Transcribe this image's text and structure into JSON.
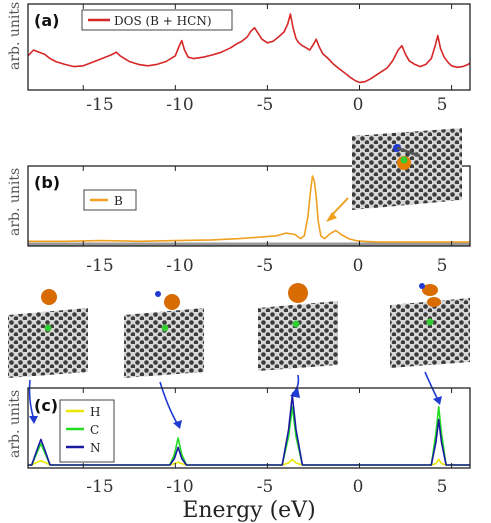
{
  "chart_data": [
    {
      "type": "line",
      "panel_label": "(a)",
      "ylabel": "arb. units",
      "xlim": [
        -18,
        6
      ],
      "x_ticks": [
        "-15",
        "-10",
        "-5",
        "0",
        "5"
      ],
      "legend": "top-left",
      "series": [
        {
          "name": "DOS (B + HCN)",
          "color": "#d62728",
          "x": [
            -18,
            -17.7,
            -17.4,
            -17.1,
            -16.8,
            -16.5,
            -16,
            -15.5,
            -15,
            -14.5,
            -14,
            -13.5,
            -13.2,
            -13,
            -12.5,
            -12,
            -11.5,
            -11,
            -10.5,
            -10,
            -9.8,
            -9.65,
            -9.5,
            -9.3,
            -9,
            -8.5,
            -8,
            -7.5,
            -7,
            -6.7,
            -6.4,
            -6.1,
            -5.9,
            -5.7,
            -5.5,
            -5.3,
            -5,
            -4.7,
            -4.4,
            -4.1,
            -3.9,
            -3.75,
            -3.6,
            -3.45,
            -3.3,
            -3.1,
            -2.9,
            -2.7,
            -2.5,
            -2.35,
            -2.2,
            -2,
            -1.7,
            -1.4,
            -1.1,
            -0.8,
            -0.5,
            -0.2,
            0,
            0.3,
            0.6,
            0.9,
            1.2,
            1.5,
            1.8,
            2.1,
            2.3,
            2.5,
            2.7,
            3,
            3.3,
            3.6,
            3.9,
            4.1,
            4.25,
            4.4,
            4.6,
            4.8,
            5,
            5.3,
            5.6,
            5.9,
            6
          ],
          "y": [
            0.42,
            0.5,
            0.47,
            0.44,
            0.38,
            0.34,
            0.3,
            0.27,
            0.28,
            0.33,
            0.38,
            0.43,
            0.47,
            0.42,
            0.34,
            0.3,
            0.28,
            0.3,
            0.34,
            0.42,
            0.55,
            0.63,
            0.5,
            0.4,
            0.38,
            0.4,
            0.43,
            0.47,
            0.53,
            0.58,
            0.62,
            0.68,
            0.76,
            0.81,
            0.73,
            0.65,
            0.6,
            0.62,
            0.68,
            0.75,
            0.86,
            1.0,
            0.8,
            0.66,
            0.6,
            0.56,
            0.53,
            0.5,
            0.58,
            0.65,
            0.55,
            0.45,
            0.38,
            0.3,
            0.24,
            0.18,
            0.12,
            0.07,
            0.05,
            0.06,
            0.1,
            0.15,
            0.2,
            0.25,
            0.35,
            0.5,
            0.56,
            0.44,
            0.35,
            0.3,
            0.27,
            0.3,
            0.38,
            0.55,
            0.7,
            0.52,
            0.4,
            0.33,
            0.28,
            0.26,
            0.27,
            0.3,
            0.32
          ]
        }
      ]
    },
    {
      "type": "line",
      "panel_label": "(b)",
      "ylabel": "arb. units",
      "xlim": [
        -18,
        6
      ],
      "x_ticks": [
        "-15",
        "-10",
        "-5",
        "0",
        "5"
      ],
      "legend": "top-left",
      "series": [
        {
          "name": "B",
          "color": "#f0a020",
          "x": [
            -18,
            -16,
            -14,
            -12,
            -10,
            -8,
            -6.5,
            -5.5,
            -4.5,
            -4,
            -3.5,
            -3.2,
            -3,
            -2.8,
            -2.65,
            -2.55,
            -2.45,
            -2.35,
            -2.25,
            -2.1,
            -1.9,
            -1.6,
            -1.3,
            -1,
            -0.6,
            -0.2,
            0.2,
            1,
            2,
            4,
            6
          ],
          "y": [
            0.04,
            0.04,
            0.05,
            0.04,
            0.05,
            0.06,
            0.08,
            0.1,
            0.12,
            0.16,
            0.14,
            0.08,
            0.12,
            0.4,
            0.8,
            1.0,
            0.92,
            0.7,
            0.35,
            0.12,
            0.08,
            0.15,
            0.2,
            0.14,
            0.08,
            0.05,
            0.04,
            0.03,
            0.03,
            0.03,
            0.03
          ]
        }
      ]
    },
    {
      "type": "line",
      "panel_label": "(c)",
      "ylabel": "arb. units",
      "xlim": [
        -18,
        6
      ],
      "x_ticks": [
        "-15",
        "-10",
        "-5",
        "0",
        "5"
      ],
      "legend": "top-left",
      "series": [
        {
          "name": "H",
          "color": "#e8e800",
          "x": [
            -18,
            -17.8,
            -17.5,
            -17.3,
            -17.1,
            -16.8,
            -10.3,
            -10.05,
            -9.85,
            -9.65,
            -9.4,
            -4.2,
            -3.85,
            -3.65,
            -3.45,
            -3.1,
            3.9,
            4.15,
            4.3,
            4.45,
            4.7,
            6
          ],
          "y": [
            0.0,
            0.0,
            0.04,
            0.06,
            0.04,
            0.0,
            0.0,
            0.02,
            0.04,
            0.02,
            0.0,
            0.0,
            0.03,
            0.08,
            0.03,
            0.0,
            0.0,
            0.02,
            0.08,
            0.02,
            0.0,
            0.0
          ]
        },
        {
          "name": "C",
          "color": "#22dd22",
          "x": [
            -18,
            -17.8,
            -17.5,
            -17.3,
            -17.1,
            -16.8,
            -10.3,
            -10.05,
            -9.85,
            -9.65,
            -9.4,
            -4.2,
            -3.85,
            -3.65,
            -3.45,
            -3.1,
            3.9,
            4.15,
            4.3,
            4.45,
            4.7,
            6
          ],
          "y": [
            0.0,
            0.0,
            0.18,
            0.3,
            0.18,
            0.0,
            0.0,
            0.15,
            0.38,
            0.15,
            0.0,
            0.0,
            0.4,
            0.82,
            0.4,
            0.0,
            0.0,
            0.45,
            0.82,
            0.45,
            0.0,
            0.0
          ]
        },
        {
          "name": "N",
          "color": "#1a1aa0",
          "x": [
            -18,
            -17.8,
            -17.5,
            -17.3,
            -17.1,
            -16.8,
            -10.3,
            -10.05,
            -9.85,
            -9.65,
            -9.4,
            -4.2,
            -3.85,
            -3.65,
            -3.45,
            -3.1,
            3.9,
            4.15,
            4.3,
            4.45,
            4.7,
            6
          ],
          "y": [
            0.0,
            0.0,
            0.22,
            0.36,
            0.22,
            0.0,
            0.0,
            0.09,
            0.25,
            0.09,
            0.0,
            0.0,
            0.5,
            0.98,
            0.5,
            0.0,
            0.0,
            0.32,
            0.64,
            0.32,
            0.0,
            0.0
          ]
        }
      ],
      "xlabel": "Energy (eV)"
    }
  ]
}
